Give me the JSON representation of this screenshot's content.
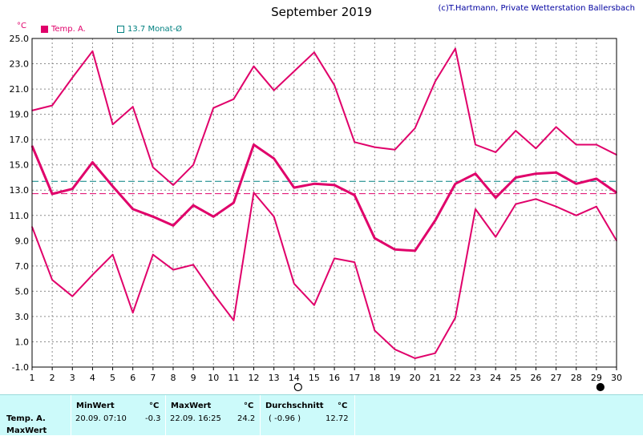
{
  "title": "September 2019",
  "copyright": "(c)T.Hartmann, Private Wetterstation Ballersbach",
  "unit": "°C",
  "legend": {
    "temp_label": "Temp. A.",
    "mean_label": "13.7 Monat-Ø"
  },
  "colors": {
    "series": "#e0006a",
    "monthly_mean_line": "#008080",
    "reference_line": "#e0006a",
    "panel_bg": "#ccfafa",
    "grid": "#8c8c8c"
  },
  "chart_data": {
    "type": "line",
    "x": [
      1,
      2,
      3,
      4,
      5,
      6,
      7,
      8,
      9,
      10,
      11,
      12,
      13,
      14,
      15,
      16,
      17,
      18,
      19,
      20,
      21,
      22,
      23,
      24,
      25,
      26,
      27,
      28,
      29,
      30
    ],
    "xticks": [
      "1",
      "2",
      "3",
      "4",
      "5",
      "6",
      "7",
      "8",
      "9",
      "10",
      "11",
      "12",
      "13",
      "14",
      "15",
      "16",
      "17",
      "18",
      "19",
      "20",
      "21",
      "22",
      "23",
      "24",
      "25",
      "26",
      "27",
      "28",
      "29",
      "30"
    ],
    "ylim": [
      -1.0,
      25.0
    ],
    "yticks": [
      "-1.0",
      "1.0",
      "3.0",
      "5.0",
      "7.0",
      "9.0",
      "11.0",
      "13.0",
      "15.0",
      "17.0",
      "19.0",
      "21.0",
      "23.0",
      "25.0"
    ],
    "grid": true,
    "series": [
      {
        "role": "max",
        "width": 2,
        "values": [
          19.3,
          19.7,
          21.9,
          24.0,
          18.2,
          19.6,
          14.8,
          13.4,
          15.0,
          19.5,
          20.2,
          22.8,
          20.9,
          22.4,
          23.9,
          21.3,
          16.8,
          16.4,
          16.2,
          17.9,
          21.6,
          24.2,
          16.6,
          16.0,
          17.7,
          16.3,
          18.0,
          16.6,
          16.6,
          15.8
        ]
      },
      {
        "name": "Temp. A.",
        "role": "mean",
        "width": 3,
        "values": [
          16.5,
          12.7,
          13.1,
          15.2,
          13.3,
          11.5,
          10.9,
          10.2,
          11.8,
          10.9,
          12.0,
          16.6,
          15.5,
          13.2,
          13.5,
          13.4,
          12.6,
          9.2,
          8.3,
          8.2,
          10.6,
          13.5,
          14.3,
          12.4,
          14.0,
          14.3,
          14.4,
          13.5,
          13.9,
          12.8
        ]
      },
      {
        "role": "min",
        "width": 2,
        "values": [
          10.1,
          5.9,
          4.6,
          6.3,
          7.9,
          3.3,
          7.9,
          6.7,
          7.1,
          4.8,
          2.7,
          12.8,
          10.9,
          5.6,
          3.9,
          7.6,
          7.3,
          1.9,
          0.4,
          -0.3,
          0.1,
          2.9,
          11.5,
          9.3,
          11.9,
          12.3,
          11.7,
          11.0,
          11.7,
          9.0
        ]
      }
    ],
    "reference_lines": [
      {
        "label": "13.7 Monat-Ø",
        "value": 13.7,
        "style": "dashed",
        "color": "#008080"
      },
      {
        "value": 12.72,
        "style": "dashed",
        "color": "#e0006a"
      }
    ],
    "moon_phases": [
      {
        "day": 14,
        "phase": "full"
      },
      {
        "day": 29,
        "phase": "new"
      }
    ]
  },
  "stats": {
    "row_label_1": "Temp. A.",
    "row_label_2": "MaxWert",
    "min_header": "MinWert",
    "min_unit": "°C",
    "min_time": "20.09.  07:10",
    "min_value": "-0.3",
    "max_header": "MaxWert",
    "max_unit": "°C",
    "max_time": "22.09.  16:25",
    "max_value": "24.2",
    "avg_header": "Durchschnitt",
    "avg_unit": "°C",
    "avg_dev": "( -0.96 )",
    "avg_value": "12.72"
  }
}
